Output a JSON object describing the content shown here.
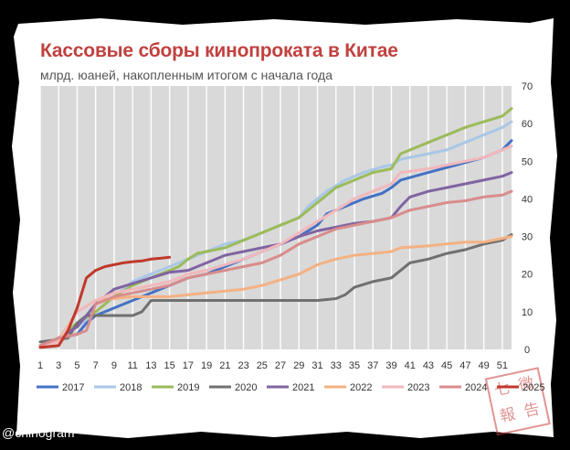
{
  "credit": "@chinogram",
  "stamp_text": [
    "七",
    "微",
    "報",
    "告"
  ],
  "colors": {
    "frame": "#000000",
    "paper": "#ffffff",
    "plot_bg": "#d9d9d9",
    "title": "#c0413e",
    "stamp": "#cc3d3d"
  },
  "chart_data": {
    "type": "line",
    "title": "Кассовые сборы кинопроката в Китае",
    "subtitle": "млрд. юаней, накопленным итогом с начала года",
    "x_ticks": [
      1,
      3,
      5,
      7,
      9,
      11,
      13,
      15,
      17,
      19,
      21,
      23,
      25,
      27,
      29,
      31,
      33,
      35,
      37,
      39,
      41,
      43,
      45,
      47,
      49,
      51
    ],
    "y_ticks": [
      0,
      10,
      20,
      30,
      40,
      50,
      60,
      70
    ],
    "xlim": [
      1,
      52
    ],
    "ylim": [
      0,
      70
    ],
    "y_axis_side": "right",
    "grid": "vertical",
    "legend_position": "bottom",
    "series": [
      {
        "name": "2017",
        "color": "#4472c4",
        "points": [
          [
            1,
            1
          ],
          [
            3,
            3
          ],
          [
            5,
            4
          ],
          [
            6,
            7
          ],
          [
            7,
            9
          ],
          [
            9,
            11
          ],
          [
            11,
            13
          ],
          [
            13,
            15
          ],
          [
            15,
            17
          ],
          [
            17,
            19
          ],
          [
            19,
            20
          ],
          [
            21,
            22
          ],
          [
            23,
            24
          ],
          [
            25,
            26
          ],
          [
            27,
            28
          ],
          [
            29,
            30
          ],
          [
            31,
            33
          ],
          [
            32,
            36
          ],
          [
            34,
            38
          ],
          [
            36,
            40
          ],
          [
            38,
            41.5
          ],
          [
            39,
            43
          ],
          [
            40,
            45
          ],
          [
            43,
            47
          ],
          [
            46,
            49
          ],
          [
            49,
            51
          ],
          [
            51,
            53
          ],
          [
            52,
            55.5
          ]
        ]
      },
      {
        "name": "2018",
        "color": "#a9c7e6",
        "points": [
          [
            1,
            1
          ],
          [
            3,
            3
          ],
          [
            5,
            6
          ],
          [
            7,
            10
          ],
          [
            9,
            14
          ],
          [
            11,
            18
          ],
          [
            13,
            20
          ],
          [
            15,
            22
          ],
          [
            17,
            24
          ],
          [
            19,
            26
          ],
          [
            21,
            28
          ],
          [
            23,
            29
          ],
          [
            25,
            31
          ],
          [
            27,
            33
          ],
          [
            29,
            35
          ],
          [
            30,
            38
          ],
          [
            32,
            42
          ],
          [
            34,
            45
          ],
          [
            36,
            47
          ],
          [
            38,
            48.5
          ],
          [
            39,
            49
          ],
          [
            40,
            50.5
          ],
          [
            43,
            52
          ],
          [
            45,
            53
          ],
          [
            47,
            55
          ],
          [
            49,
            57
          ],
          [
            51,
            59
          ],
          [
            52,
            60.5
          ]
        ]
      },
      {
        "name": "2019",
        "color": "#9bbb59",
        "points": [
          [
            1,
            1
          ],
          [
            3,
            3
          ],
          [
            5,
            7
          ],
          [
            7,
            10
          ],
          [
            9,
            14
          ],
          [
            11,
            17
          ],
          [
            13,
            19
          ],
          [
            15,
            21
          ],
          [
            16,
            22
          ],
          [
            17,
            24
          ],
          [
            18,
            25.5
          ],
          [
            21,
            27
          ],
          [
            23,
            29
          ],
          [
            25,
            31
          ],
          [
            27,
            33
          ],
          [
            29,
            35
          ],
          [
            31,
            39
          ],
          [
            33,
            43
          ],
          [
            35,
            45
          ],
          [
            37,
            47
          ],
          [
            39,
            48
          ],
          [
            40,
            52
          ],
          [
            43,
            55
          ],
          [
            45,
            57
          ],
          [
            47,
            59
          ],
          [
            49,
            60.5
          ],
          [
            51,
            62
          ],
          [
            52,
            64
          ]
        ]
      },
      {
        "name": "2020",
        "color": "#707070",
        "points": [
          [
            1,
            2
          ],
          [
            4,
            3
          ],
          [
            5,
            7
          ],
          [
            6,
            9
          ],
          [
            8,
            9
          ],
          [
            10,
            9
          ],
          [
            11,
            9
          ],
          [
            12,
            10
          ],
          [
            13,
            13
          ],
          [
            15,
            13
          ],
          [
            17,
            13
          ],
          [
            19,
            13
          ],
          [
            21,
            13
          ],
          [
            23,
            13
          ],
          [
            25,
            13
          ],
          [
            27,
            13
          ],
          [
            29,
            13
          ],
          [
            31,
            13
          ],
          [
            33,
            13.5
          ],
          [
            34,
            14.5
          ],
          [
            35,
            16.5
          ],
          [
            37,
            18
          ],
          [
            39,
            19
          ],
          [
            41,
            23
          ],
          [
            43,
            24
          ],
          [
            45,
            25.5
          ],
          [
            47,
            26.5
          ],
          [
            49,
            28
          ],
          [
            51,
            29
          ],
          [
            52,
            30.5
          ]
        ]
      },
      {
        "name": "2021",
        "color": "#8064a2",
        "points": [
          [
            1,
            1
          ],
          [
            3,
            3
          ],
          [
            5,
            6
          ],
          [
            7,
            12
          ],
          [
            9,
            16
          ],
          [
            11,
            17.5
          ],
          [
            13,
            19
          ],
          [
            15,
            20.5
          ],
          [
            17,
            21
          ],
          [
            19,
            23
          ],
          [
            21,
            25
          ],
          [
            23,
            26
          ],
          [
            25,
            27
          ],
          [
            27,
            28
          ],
          [
            29,
            30
          ],
          [
            31,
            31.5
          ],
          [
            33,
            32.5
          ],
          [
            35,
            33.5
          ],
          [
            37,
            34
          ],
          [
            39,
            35
          ],
          [
            40,
            38
          ],
          [
            41,
            40.5
          ],
          [
            43,
            42
          ],
          [
            45,
            43
          ],
          [
            47,
            44
          ],
          [
            49,
            45
          ],
          [
            51,
            46
          ],
          [
            52,
            47
          ]
        ]
      },
      {
        "name": "2022",
        "color": "#f4b183",
        "points": [
          [
            1,
            1
          ],
          [
            3,
            2.5
          ],
          [
            5,
            10
          ],
          [
            7,
            13
          ],
          [
            9,
            13.5
          ],
          [
            11,
            14
          ],
          [
            13,
            14
          ],
          [
            15,
            14
          ],
          [
            17,
            14.5
          ],
          [
            19,
            15
          ],
          [
            21,
            15.5
          ],
          [
            23,
            16
          ],
          [
            25,
            17
          ],
          [
            27,
            18.5
          ],
          [
            29,
            20
          ],
          [
            31,
            22.5
          ],
          [
            33,
            24
          ],
          [
            35,
            25
          ],
          [
            37,
            25.5
          ],
          [
            39,
            26
          ],
          [
            40,
            27
          ],
          [
            43,
            27.5
          ],
          [
            45,
            28
          ],
          [
            47,
            28.5
          ],
          [
            49,
            28.5
          ],
          [
            51,
            29.5
          ],
          [
            52,
            30
          ]
        ]
      },
      {
        "name": "2023",
        "color": "#f2b8bc",
        "points": [
          [
            1,
            1
          ],
          [
            3,
            2
          ],
          [
            5,
            10
          ],
          [
            7,
            13
          ],
          [
            9,
            15
          ],
          [
            11,
            16
          ],
          [
            13,
            17
          ],
          [
            15,
            18
          ],
          [
            17,
            20
          ],
          [
            19,
            21
          ],
          [
            21,
            22.5
          ],
          [
            23,
            24
          ],
          [
            25,
            26
          ],
          [
            27,
            28
          ],
          [
            29,
            31
          ],
          [
            31,
            34
          ],
          [
            33,
            37
          ],
          [
            35,
            40
          ],
          [
            37,
            42
          ],
          [
            39,
            44
          ],
          [
            40,
            47
          ],
          [
            43,
            48
          ],
          [
            45,
            49
          ],
          [
            47,
            50
          ],
          [
            49,
            51
          ],
          [
            51,
            53
          ],
          [
            52,
            54
          ]
        ]
      },
      {
        "name": "2024",
        "color": "#d98c8c",
        "points": [
          [
            1,
            1
          ],
          [
            3,
            3
          ],
          [
            5,
            4
          ],
          [
            6,
            5
          ],
          [
            7,
            12
          ],
          [
            9,
            14
          ],
          [
            11,
            15
          ],
          [
            13,
            16
          ],
          [
            15,
            17
          ],
          [
            17,
            19
          ],
          [
            19,
            20
          ],
          [
            21,
            21
          ],
          [
            23,
            22
          ],
          [
            25,
            23
          ],
          [
            27,
            25
          ],
          [
            29,
            28
          ],
          [
            31,
            30
          ],
          [
            33,
            32
          ],
          [
            35,
            33
          ],
          [
            37,
            34
          ],
          [
            38,
            34.5
          ],
          [
            39,
            35
          ],
          [
            40,
            36
          ],
          [
            41,
            37
          ],
          [
            43,
            38
          ],
          [
            45,
            39
          ],
          [
            47,
            39.5
          ],
          [
            49,
            40.5
          ],
          [
            51,
            41
          ],
          [
            52,
            42
          ]
        ]
      },
      {
        "name": "2025",
        "color": "#c0392b",
        "points": [
          [
            1,
            0.5
          ],
          [
            3,
            1
          ],
          [
            4,
            5
          ],
          [
            5,
            11
          ],
          [
            6,
            19
          ],
          [
            7,
            21
          ],
          [
            8,
            22
          ],
          [
            9,
            22.5
          ],
          [
            10,
            23
          ],
          [
            11,
            23.3
          ],
          [
            12,
            23.5
          ],
          [
            13,
            24
          ],
          [
            14,
            24.2
          ],
          [
            15,
            24.5
          ]
        ]
      }
    ]
  }
}
